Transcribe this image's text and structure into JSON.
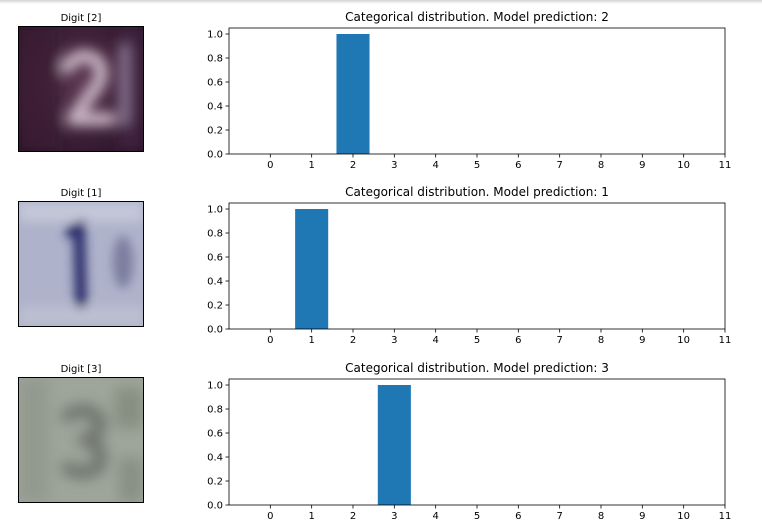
{
  "panels": [
    {
      "digit_title": "Digit [2]",
      "image": "svhn-digit-2",
      "chart_data": {
        "type": "bar",
        "title": "Categorical distribution. Model prediction: 2",
        "categories": [
          0,
          1,
          2,
          3,
          4,
          5,
          6,
          7,
          8,
          9,
          10,
          11
        ],
        "values": [
          0,
          0,
          1.0,
          0,
          0,
          0,
          0,
          0,
          0,
          0,
          0,
          0
        ],
        "xlim": [
          -1,
          11
        ],
        "ylim": [
          0,
          1.05
        ],
        "yticks": [
          "0.0",
          "0.2",
          "0.4",
          "0.6",
          "0.8",
          "1.0"
        ],
        "xticks": [
          "0",
          "1",
          "2",
          "3",
          "4",
          "5",
          "6",
          "7",
          "8",
          "9",
          "10",
          "11"
        ],
        "color": "#1f77b4",
        "grid": false
      }
    },
    {
      "digit_title": "Digit [1]",
      "image": "svhn-digit-1",
      "chart_data": {
        "type": "bar",
        "title": "Categorical distribution. Model prediction: 1",
        "categories": [
          0,
          1,
          2,
          3,
          4,
          5,
          6,
          7,
          8,
          9,
          10,
          11
        ],
        "values": [
          0,
          1.0,
          0,
          0,
          0,
          0,
          0,
          0,
          0,
          0,
          0,
          0
        ],
        "xlim": [
          -1,
          11
        ],
        "ylim": [
          0,
          1.05
        ],
        "yticks": [
          "0.0",
          "0.2",
          "0.4",
          "0.6",
          "0.8",
          "1.0"
        ],
        "xticks": [
          "0",
          "1",
          "2",
          "3",
          "4",
          "5",
          "6",
          "7",
          "8",
          "9",
          "10",
          "11"
        ],
        "color": "#1f77b4",
        "grid": false
      }
    },
    {
      "digit_title": "Digit [3]",
      "image": "svhn-digit-3",
      "chart_data": {
        "type": "bar",
        "title": "Categorical distribution. Model prediction: 3",
        "categories": [
          0,
          1,
          2,
          3,
          4,
          5,
          6,
          7,
          8,
          9,
          10,
          11
        ],
        "values": [
          0,
          0,
          0,
          1.0,
          0,
          0,
          0,
          0,
          0,
          0,
          0,
          0
        ],
        "xlim": [
          -1,
          11
        ],
        "ylim": [
          0,
          1.05
        ],
        "yticks": [
          "0.0",
          "0.2",
          "0.4",
          "0.6",
          "0.8",
          "1.0"
        ],
        "xticks": [
          "0",
          "1",
          "2",
          "3",
          "4",
          "5",
          "6",
          "7",
          "8",
          "9",
          "10",
          "11"
        ],
        "color": "#1f77b4",
        "grid": false
      }
    }
  ]
}
